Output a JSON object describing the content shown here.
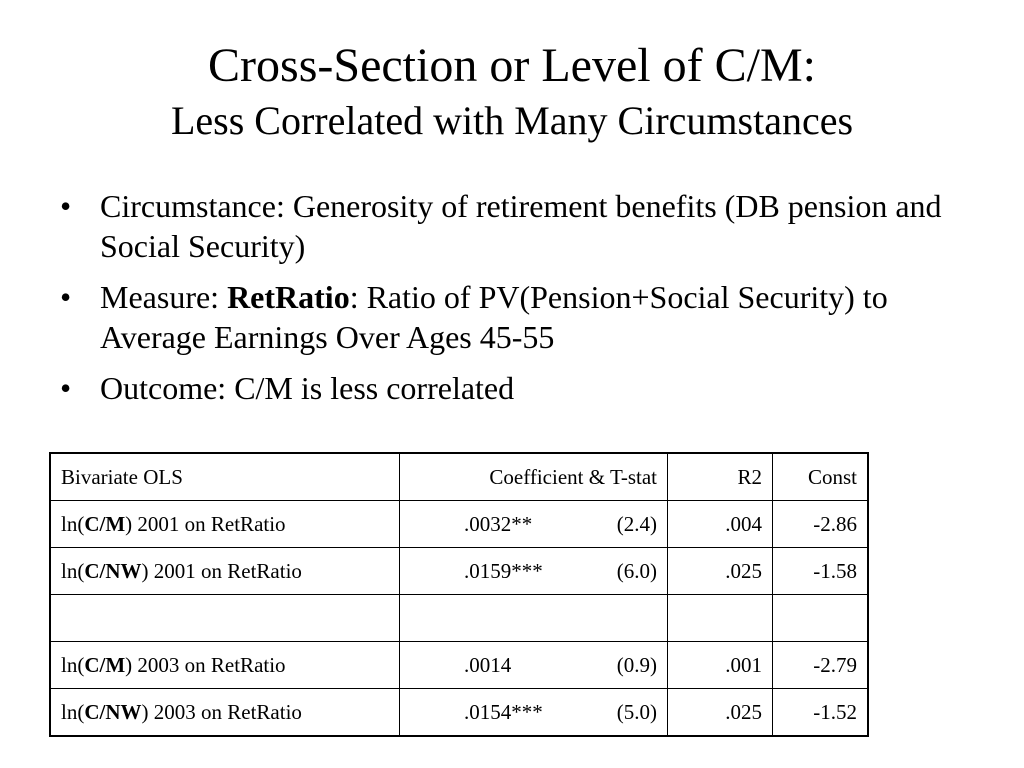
{
  "slide": {
    "title": "Cross-Section or Level of C/M:",
    "subtitle": "Less Correlated with Many Circumstances",
    "bullet_glyph": "•",
    "bullets": {
      "b1": {
        "text": "Circumstance: Generosity of retirement benefits (DB pension and Social Security)"
      },
      "b2": {
        "prefix": "Measure: ",
        "bold": "RetRatio",
        "rest": ": Ratio of PV(Pension+Social Security) to Average Earnings Over Ages 45-55"
      },
      "b3": {
        "text": "Outcome: C/M is less correlated"
      }
    }
  },
  "table": {
    "headers": {
      "label": "Bivariate OLS",
      "coef": "Coefficient & T-stat",
      "r2": "R2",
      "const": "Const"
    },
    "rows": [
      {
        "pre": "ln(",
        "bold": "C/M",
        "post": ") 2001 on RetRatio",
        "coef": ".0032**",
        "tstat": "(2.4)",
        "r2": ".004",
        "const": "-2.86"
      },
      {
        "pre": "ln(",
        "bold": "C/NW",
        "post": ") 2001 on RetRatio",
        "coef": ".0159***",
        "tstat": "(6.0)",
        "r2": ".025",
        "const": "-1.58"
      },
      {
        "pre": "",
        "bold": "",
        "post": "",
        "coef": "",
        "tstat": "",
        "r2": "",
        "const": ""
      },
      {
        "pre": "ln(",
        "bold": "C/M",
        "post": ") 2003 on RetRatio",
        "coef": ".0014",
        "tstat": "(0.9)",
        "r2": ".001",
        "const": "-2.79"
      },
      {
        "pre": "ln(",
        "bold": "C/NW",
        "post": ") 2003 on RetRatio",
        "coef": ".0154***",
        "tstat": "(5.0)",
        "r2": ".025",
        "const": "-1.52"
      }
    ]
  }
}
